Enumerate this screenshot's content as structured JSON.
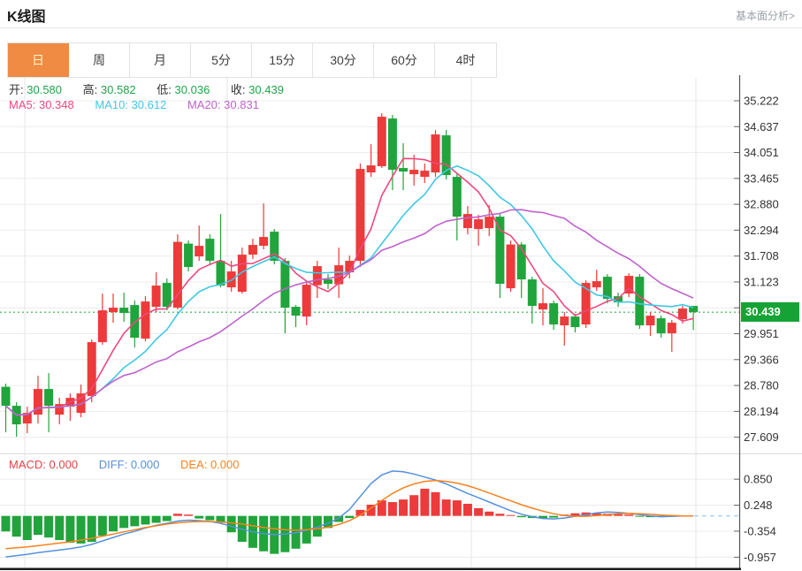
{
  "header": {
    "title": "K线图",
    "link": "基本面分析>"
  },
  "tabs": [
    {
      "label": "日",
      "active": true
    },
    {
      "label": "周",
      "active": false
    },
    {
      "label": "月",
      "active": false
    },
    {
      "label": "5分",
      "active": false
    },
    {
      "label": "15分",
      "active": false
    },
    {
      "label": "30分",
      "active": false
    },
    {
      "label": "60分",
      "active": false
    },
    {
      "label": "4时",
      "active": false
    }
  ],
  "legend": {
    "ohlc": [
      {
        "label": "开:",
        "value": "30.580"
      },
      {
        "label": "高:",
        "value": "30.582"
      },
      {
        "label": "低:",
        "value": "30.036"
      },
      {
        "label": "收:",
        "value": "30.439"
      }
    ],
    "ma": [
      {
        "label": "MA5:",
        "value": "30.348"
      },
      {
        "label": "MA10:",
        "value": "30.612"
      },
      {
        "label": "MA20:",
        "value": "30.831"
      }
    ],
    "macd": [
      {
        "label": "MACD:",
        "value": "0.000"
      },
      {
        "label": "DIFF:",
        "value": "0.000"
      },
      {
        "label": "DEA:",
        "value": "0.000"
      }
    ]
  },
  "price_badge": {
    "text": "30.439",
    "color": "#16a335"
  },
  "colors": {
    "up": "#ed3a3a",
    "down": "#20a43b",
    "grid": "#ececec",
    "vgrid": "#e6e6e6",
    "dotted": "#2cb14a",
    "dif": "#5590dd",
    "dea": "#f5821f",
    "proj": "#9ed0ec",
    "axis_line": "#555555",
    "bottom_line": "#1a1a1a",
    "tick_text": "#333333",
    "tab_active_bg": "#ef8b43",
    "badge": "#16a335"
  },
  "chart_data": {
    "type": "candlestick+macd",
    "title": "K线图",
    "price_axis": [
      "35.222",
      "34.637",
      "34.051",
      "33.465",
      "32.880",
      "32.294",
      "31.708",
      "31.123",
      "30.537",
      "29.951",
      "29.366",
      "28.780",
      "28.194",
      "27.609"
    ],
    "macd_axis": [
      "0.850",
      "0.248",
      "-0.354",
      "-0.957"
    ],
    "current_price": 30.439,
    "v_gridlines": [
      28,
      257,
      533,
      787
    ],
    "ma_periods": [
      5,
      10,
      20
    ],
    "ma_colors": [
      "#f0477c",
      "#3fc8e4",
      "#bf62cc"
    ],
    "candles": [
      [
        28.75,
        28.32,
        28.82,
        27.72
      ],
      [
        28.32,
        27.9,
        28.4,
        27.62
      ],
      [
        27.92,
        28.16,
        28.3,
        27.7
      ],
      [
        28.12,
        28.7,
        29.0,
        27.92
      ],
      [
        28.7,
        28.32,
        29.06,
        27.72
      ],
      [
        28.12,
        28.36,
        28.5,
        27.9
      ],
      [
        28.3,
        28.5,
        28.6,
        27.98
      ],
      [
        28.16,
        28.6,
        28.8,
        28.06
      ],
      [
        28.54,
        29.76,
        29.82,
        28.4
      ],
      [
        29.76,
        30.48,
        30.86,
        29.7
      ],
      [
        30.44,
        30.54,
        30.86,
        30.2
      ],
      [
        30.54,
        30.42,
        30.88,
        30.22
      ],
      [
        30.6,
        29.86,
        30.7,
        29.64
      ],
      [
        29.84,
        30.68,
        30.8,
        29.78
      ],
      [
        30.56,
        31.04,
        31.34,
        30.44
      ],
      [
        31.1,
        30.56,
        31.2,
        30.48
      ],
      [
        30.54,
        32.03,
        32.2,
        30.5
      ],
      [
        31.99,
        31.46,
        32.06,
        31.36
      ],
      [
        31.7,
        31.94,
        32.4,
        31.6
      ],
      [
        32.1,
        31.6,
        32.2,
        31.5
      ],
      [
        31.6,
        31.04,
        32.66,
        31.0
      ],
      [
        31.0,
        31.36,
        31.6,
        30.9
      ],
      [
        30.9,
        31.74,
        31.9,
        30.86
      ],
      [
        31.74,
        31.96,
        32.1,
        31.64
      ],
      [
        31.94,
        32.14,
        32.9,
        31.86
      ],
      [
        32.26,
        31.6,
        32.32,
        31.52
      ],
      [
        31.6,
        30.54,
        31.66,
        29.96
      ],
      [
        30.56,
        30.36,
        30.6,
        30.1
      ],
      [
        30.34,
        31.06,
        31.14,
        30.14
      ],
      [
        31.05,
        31.48,
        31.6,
        30.76
      ],
      [
        31.18,
        31.08,
        31.3,
        30.96
      ],
      [
        31.07,
        31.5,
        31.9,
        30.76
      ],
      [
        31.34,
        31.6,
        31.72,
        31.2
      ],
      [
        31.6,
        33.68,
        33.8,
        31.46
      ],
      [
        33.6,
        33.76,
        34.24,
        33.5
      ],
      [
        33.74,
        34.86,
        34.94,
        33.7
      ],
      [
        34.82,
        33.66,
        34.9,
        33.2
      ],
      [
        33.7,
        33.62,
        34.26,
        33.2
      ],
      [
        33.56,
        33.66,
        34.0,
        33.3
      ],
      [
        33.5,
        33.64,
        33.8,
        33.36
      ],
      [
        33.6,
        34.46,
        34.56,
        33.5
      ],
      [
        34.44,
        33.54,
        34.56,
        33.44
      ],
      [
        33.5,
        32.6,
        33.56,
        32.06
      ],
      [
        32.34,
        32.66,
        32.84,
        32.2
      ],
      [
        32.32,
        32.54,
        32.64,
        31.94
      ],
      [
        32.34,
        32.6,
        32.86,
        32.16
      ],
      [
        32.6,
        31.08,
        32.66,
        30.76
      ],
      [
        30.98,
        31.97,
        32.06,
        30.9
      ],
      [
        31.97,
        31.18,
        32.02,
        30.76
      ],
      [
        31.18,
        30.58,
        31.24,
        30.18
      ],
      [
        30.5,
        30.64,
        30.98,
        30.14
      ],
      [
        30.64,
        30.16,
        30.7,
        30.04
      ],
      [
        30.14,
        30.34,
        30.44,
        29.68
      ],
      [
        30.34,
        30.1,
        30.4,
        29.98
      ],
      [
        30.16,
        31.1,
        31.16,
        30.08
      ],
      [
        31.0,
        31.14,
        31.4,
        30.92
      ],
      [
        31.24,
        30.74,
        31.3,
        30.64
      ],
      [
        30.8,
        30.66,
        30.88,
        30.56
      ],
      [
        30.86,
        31.26,
        31.32,
        30.78
      ],
      [
        31.24,
        30.14,
        31.3,
        30.06
      ],
      [
        30.14,
        30.36,
        30.44,
        29.9
      ],
      [
        30.3,
        29.96,
        30.36,
        29.86
      ],
      [
        29.96,
        30.2,
        30.26,
        29.54
      ],
      [
        30.28,
        30.52,
        30.58,
        30.18
      ],
      [
        30.58,
        30.439,
        30.582,
        30.036
      ]
    ],
    "macd": {
      "bars": [
        -0.36,
        -0.48,
        -0.56,
        -0.44,
        -0.5,
        -0.56,
        -0.62,
        -0.64,
        -0.6,
        -0.46,
        -0.36,
        -0.28,
        -0.24,
        -0.2,
        -0.16,
        -0.12,
        0.05,
        0.03,
        -0.06,
        -0.1,
        -0.16,
        -0.38,
        -0.6,
        -0.74,
        -0.82,
        -0.88,
        -0.84,
        -0.76,
        -0.64,
        -0.48,
        -0.28,
        -0.14,
        -0.05,
        0.14,
        0.26,
        0.36,
        0.32,
        0.38,
        0.48,
        0.63,
        0.55,
        0.38,
        0.36,
        0.28,
        0.18,
        0.1,
        0.05,
        0.02,
        -0.03,
        -0.05,
        -0.06,
        -0.04,
        0.03,
        0.06,
        0.08,
        0.06,
        0.05,
        0.04,
        0.03,
        -0.02,
        -0.03,
        -0.02,
        -0.01,
        0.0,
        0.0
      ],
      "dif": [
        -0.95,
        -0.92,
        -0.89,
        -0.85,
        -0.82,
        -0.79,
        -0.76,
        -0.72,
        -0.66,
        -0.58,
        -0.5,
        -0.42,
        -0.36,
        -0.28,
        -0.22,
        -0.17,
        -0.12,
        -0.1,
        -0.11,
        -0.13,
        -0.17,
        -0.24,
        -0.31,
        -0.37,
        -0.41,
        -0.43,
        -0.42,
        -0.39,
        -0.33,
        -0.26,
        -0.17,
        -0.05,
        0.15,
        0.45,
        0.75,
        0.95,
        1.04,
        1.02,
        0.97,
        0.9,
        0.83,
        0.74,
        0.63,
        0.52,
        0.42,
        0.32,
        0.22,
        0.12,
        0.04,
        -0.02,
        -0.06,
        -0.07,
        -0.05,
        -0.01,
        0.03,
        0.07,
        0.09,
        0.08,
        0.06,
        0.03,
        0.0,
        -0.02,
        -0.01,
        0.0,
        0.0
      ],
      "dea": [
        -0.76,
        -0.74,
        -0.72,
        -0.69,
        -0.66,
        -0.63,
        -0.6,
        -0.56,
        -0.52,
        -0.47,
        -0.42,
        -0.37,
        -0.32,
        -0.27,
        -0.23,
        -0.19,
        -0.16,
        -0.14,
        -0.13,
        -0.13,
        -0.14,
        -0.16,
        -0.19,
        -0.23,
        -0.27,
        -0.3,
        -0.32,
        -0.33,
        -0.32,
        -0.3,
        -0.26,
        -0.2,
        -0.11,
        0.02,
        0.18,
        0.36,
        0.52,
        0.65,
        0.74,
        0.8,
        0.82,
        0.8,
        0.76,
        0.7,
        0.62,
        0.53,
        0.44,
        0.35,
        0.26,
        0.18,
        0.11,
        0.05,
        0.01,
        -0.01,
        -0.01,
        0.01,
        0.03,
        0.05,
        0.06,
        0.05,
        0.04,
        0.02,
        0.01,
        0.0,
        0.0
      ]
    }
  }
}
